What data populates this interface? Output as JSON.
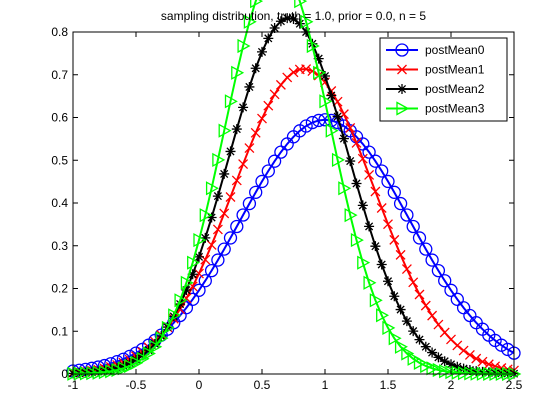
{
  "chart_data": {
    "type": "line",
    "title": "sampling distribution, truth = 1.0, prior = 0.0, n = 5",
    "xlabel": "",
    "ylabel": "",
    "xlim": [
      -1,
      2.5
    ],
    "ylim": [
      0,
      0.8
    ],
    "xticks": [
      -1,
      -0.5,
      0,
      0.5,
      1,
      1.5,
      2,
      2.5
    ],
    "xtick_labels": [
      "-1",
      "-0.5",
      "0",
      "0.5",
      "1",
      "1.5",
      "2",
      "2.5"
    ],
    "yticks": [
      0,
      0.1,
      0.2,
      0.3,
      0.4,
      0.5,
      0.6,
      0.7,
      0.8
    ],
    "ytick_labels": [
      "0",
      "0.1",
      "0.2",
      "0.3",
      "0.4",
      "0.5",
      "0.6",
      "0.7",
      "0.8"
    ],
    "grid": false,
    "legend_position": "top-right",
    "series": [
      {
        "name": "postMean0",
        "color": "#0000ff",
        "marker": "circle",
        "mu": 1.0,
        "sigma": 0.6708,
        "scale": 1.0
      },
      {
        "name": "postMean1",
        "color": "#ff0000",
        "marker": "x",
        "mu": 0.8333,
        "sigma": 0.559,
        "scale": 0.8333
      },
      {
        "name": "postMean2",
        "color": "#000000",
        "marker": "asterisk",
        "mu": 0.7143,
        "sigma": 0.4791,
        "scale": 0.7143
      },
      {
        "name": "postMean3",
        "color": "#00ff00",
        "marker": "triangle-right",
        "mu": 0.625,
        "sigma": 0.4193,
        "scale": 0.625
      }
    ],
    "x_sample_step": 0.05
  }
}
